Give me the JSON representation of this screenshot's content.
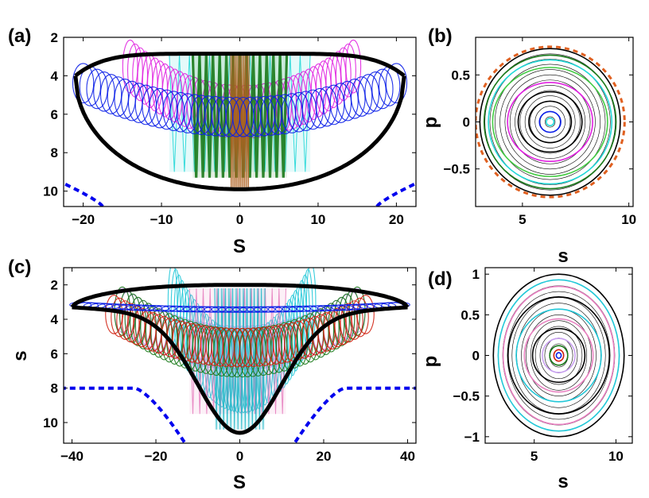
{
  "chart_data": [
    {
      "panel": "(a)",
      "type": "line",
      "xlabel": "S",
      "ylabel": "",
      "xlim": [
        -22.5,
        22.5
      ],
      "ylim": [
        2,
        10.8
      ],
      "y_inverted": true,
      "xticks": [
        -20,
        -10,
        0,
        10,
        20
      ],
      "xtick_labels": [
        "−20",
        "−10",
        "0",
        "10",
        "20"
      ],
      "yticks": [
        2,
        4,
        6,
        8,
        10
      ],
      "ytick_labels": [
        "2",
        "4",
        "6",
        "8",
        "10"
      ],
      "boundary": {
        "x_extent": 21,
        "s_top": 2.85,
        "s_bottom": 9.9,
        "s_ends": 4.0
      },
      "dashed_curve": {
        "color": "#0000ee",
        "x_from": 17.5,
        "s_at_edge": 9.6,
        "s_at_inner": 10.8
      },
      "orbit_bands": [
        {
          "name": "cyan",
          "color": "#22d8d8",
          "x_range": [
            -9,
            9
          ],
          "s_range": [
            2.9,
            9.0
          ]
        },
        {
          "name": "magenta",
          "color": "#e020e0",
          "x_range": [
            -14,
            14.5
          ],
          "s_range": [
            3.0,
            7.3
          ]
        },
        {
          "name": "green",
          "color": "#1a7a1a",
          "x_range": [
            -6,
            6
          ],
          "s_range": [
            2.9,
            9.3
          ]
        },
        {
          "name": "brown",
          "color": "#b06020",
          "x_range": [
            -1.2,
            1.2
          ],
          "s_range": [
            2.9,
            9.8
          ]
        },
        {
          "name": "blue",
          "color": "#0a1ee8",
          "x_range": [
            -20,
            20
          ],
          "s_range": [
            4.0,
            7.2
          ]
        }
      ]
    },
    {
      "panel": "(b)",
      "type": "line",
      "xlabel": "s",
      "ylabel": "p",
      "xlim": [
        2.8,
        10.2
      ],
      "ylim": [
        -0.9,
        0.9
      ],
      "xticks": [
        5,
        10
      ],
      "xtick_labels": [
        "5",
        "10"
      ],
      "yticks": [
        0.5,
        0,
        -0.5
      ],
      "ytick_labels": [
        "0.5",
        "0",
        "−0.5"
      ],
      "center_s": 6.3,
      "rings": [
        {
          "color": "#000000",
          "rx": 3.3,
          "ry": 0.78
        },
        {
          "color": "#e06020",
          "rx": 3.5,
          "ry": 0.8
        },
        {
          "color": "#1a7a1a",
          "rx": 3.1,
          "ry": 0.71
        },
        {
          "color": "#22d8d8",
          "rx": 2.9,
          "ry": 0.66
        },
        {
          "color": "#44cc44",
          "rx": 2.7,
          "ry": 0.58
        },
        {
          "color": "#e020e0",
          "rx": 2.0,
          "ry": 0.42
        },
        {
          "color": "#000000",
          "rx": 1.5,
          "ry": 0.32
        },
        {
          "color": "#000000",
          "rx": 1.0,
          "ry": 0.22
        },
        {
          "color": "#0a1ee8",
          "rx": 0.5,
          "ry": 0.11
        },
        {
          "color": "#22d8d8",
          "rx": 0.18,
          "ry": 0.04
        }
      ]
    },
    {
      "panel": "(c)",
      "type": "line",
      "xlabel": "S",
      "ylabel": "s",
      "xlim": [
        -42,
        42
      ],
      "ylim": [
        1,
        11.2
      ],
      "y_inverted": true,
      "xticks": [
        -40,
        -20,
        0,
        20,
        40
      ],
      "xtick_labels": [
        "−40",
        "−20",
        "0",
        "20",
        "40"
      ],
      "yticks": [
        2,
        4,
        6,
        8,
        10
      ],
      "ytick_labels": [
        "2",
        "4",
        "6",
        "8",
        "10"
      ],
      "boundary": {
        "x_extent": 40,
        "s_top": 2.0,
        "s_bottom": 10.6,
        "s_ends": 3.3
      },
      "dashed_curve": {
        "color": "#0000ee",
        "s_flat": 8.0,
        "x_knee": 25
      },
      "orbit_bands": [
        {
          "name": "violet",
          "color": "#c8a0f0",
          "x_range": [
            -28,
            28
          ],
          "s_range": [
            3.0,
            7.0
          ]
        },
        {
          "name": "cyan",
          "color": "#22c8d8",
          "x_range": [
            -16,
            17
          ],
          "s_range": [
            2.2,
            9.5
          ]
        },
        {
          "name": "pink",
          "color": "#e880c0",
          "x_range": [
            -12,
            11
          ],
          "s_range": [
            2.2,
            9.5
          ]
        },
        {
          "name": "teal",
          "color": "#20b8c8",
          "x_range": [
            -6,
            6
          ],
          "s_range": [
            2.2,
            10.4
          ]
        },
        {
          "name": "green",
          "color": "#1a7a1a",
          "x_range": [
            -28,
            28
          ],
          "s_range": [
            3.0,
            7.4
          ]
        },
        {
          "name": "red",
          "color": "#d02010",
          "x_range": [
            -30,
            30
          ],
          "s_range": [
            3.3,
            6.8
          ]
        },
        {
          "name": "blue",
          "color": "#0a1ee8",
          "x_range": [
            -38,
            38
          ],
          "s_range": [
            3.1,
            3.6
          ]
        }
      ]
    },
    {
      "panel": "(d)",
      "type": "line",
      "xlabel": "s",
      "ylabel": "p",
      "xlim": [
        2,
        11
      ],
      "ylim": [
        -1.08,
        1.08
      ],
      "xticks": [
        5,
        10
      ],
      "xtick_labels": [
        "5",
        "10"
      ],
      "yticks": [
        1,
        0.5,
        0,
        -0.5,
        -1
      ],
      "ytick_labels": [
        "1",
        "0.5",
        "0",
        "−0.5",
        "−1"
      ],
      "center_s": 6.5,
      "rings": [
        {
          "color": "#000000",
          "rx": 4.0,
          "ry": 1.0
        },
        {
          "color": "#22c8d8",
          "rx": 3.7,
          "ry": 0.93
        },
        {
          "color": "#e880c0",
          "rx": 3.4,
          "ry": 0.85
        },
        {
          "color": "#000000",
          "rx": 3.1,
          "ry": 0.72
        },
        {
          "color": "#22c8d8",
          "rx": 2.6,
          "ry": 0.57
        },
        {
          "color": "#e880c0",
          "rx": 2.1,
          "ry": 0.45
        },
        {
          "color": "#000000",
          "rx": 1.6,
          "ry": 0.33
        },
        {
          "color": "#c8a0f0",
          "rx": 1.0,
          "ry": 0.21
        },
        {
          "color": "#1a7a1a",
          "rx": 0.55,
          "ry": 0.12
        },
        {
          "color": "#d02010",
          "rx": 0.3,
          "ry": 0.07
        },
        {
          "color": "#0a1ee8",
          "rx": 0.15,
          "ry": 0.035
        }
      ]
    }
  ]
}
